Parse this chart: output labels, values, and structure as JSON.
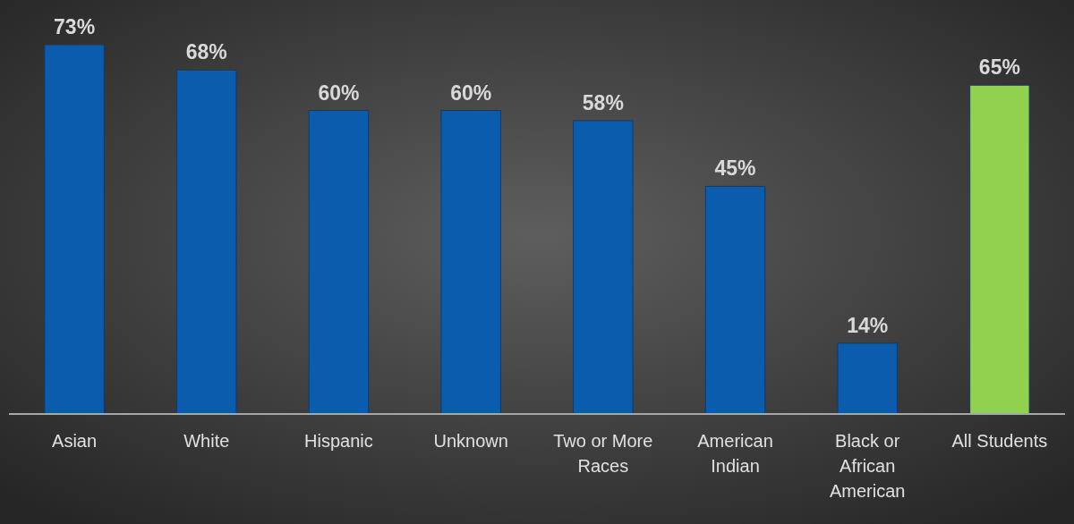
{
  "chart_data": {
    "type": "bar",
    "categories": [
      "Asian",
      "White",
      "Hispanic",
      "Unknown",
      "Two or More Races",
      "American Indian",
      "Black or African American",
      "All Students"
    ],
    "values": [
      73,
      68,
      60,
      60,
      58,
      45,
      14,
      65
    ],
    "value_labels": [
      "73%",
      "68%",
      "60%",
      "60%",
      "58%",
      "45%",
      "14%",
      "65%"
    ],
    "colors": [
      "#0b5cad",
      "#0b5cad",
      "#0b5cad",
      "#0b5cad",
      "#0b5cad",
      "#0b5cad",
      "#0b5cad",
      "#92d050"
    ]
  }
}
